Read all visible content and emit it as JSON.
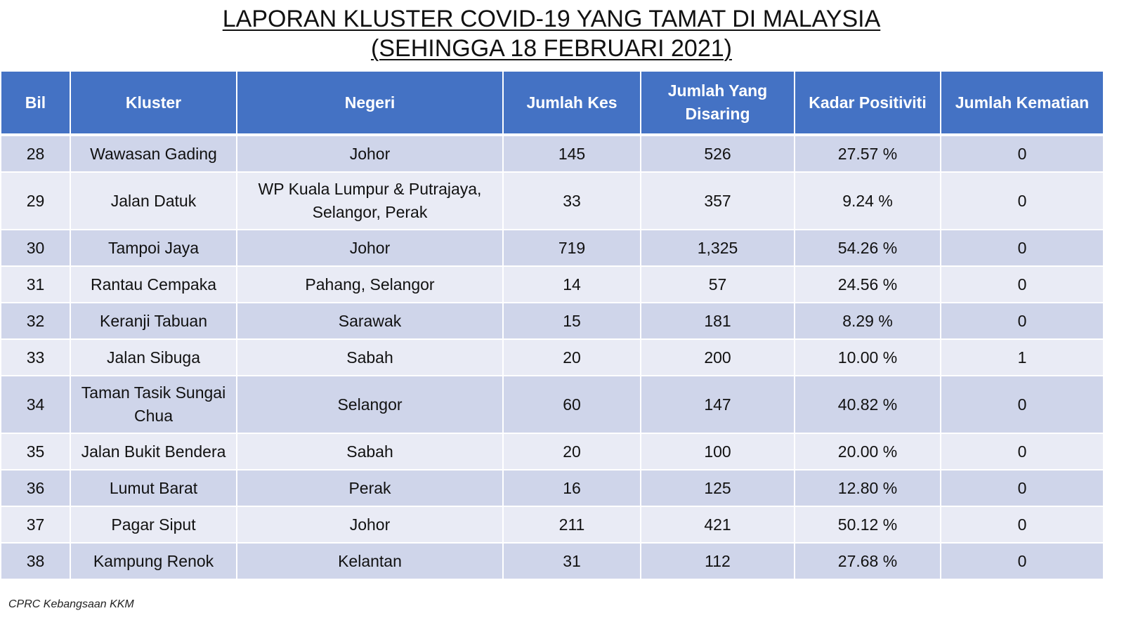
{
  "title": {
    "line1": "LAPORAN KLUSTER COVID-19 YANG TAMAT DI MALAYSIA",
    "line2": "(SEHINGGA  18 FEBRUARI 2021)"
  },
  "table": {
    "headers": [
      "Bil",
      "Kluster",
      "Negeri",
      "Jumlah Kes",
      "Jumlah Yang Disaring",
      "Kadar Positiviti",
      "Jumlah Kematian"
    ],
    "rows": [
      {
        "bil": "28",
        "kluster": "Wawasan Gading",
        "negeri": "Johor",
        "kes": "145",
        "disaring": "526",
        "positiviti": "27.57 %",
        "kematian": "0"
      },
      {
        "bil": "29",
        "kluster": "Jalan Datuk",
        "negeri": "WP Kuala Lumpur & Putrajaya, Selangor, Perak",
        "kes": "33",
        "disaring": "357",
        "positiviti": "9.24 %",
        "kematian": "0"
      },
      {
        "bil": "30",
        "kluster": "Tampoi Jaya",
        "negeri": "Johor",
        "kes": "719",
        "disaring": "1,325",
        "positiviti": "54.26 %",
        "kematian": "0"
      },
      {
        "bil": "31",
        "kluster": "Rantau Cempaka",
        "negeri": "Pahang, Selangor",
        "kes": "14",
        "disaring": "57",
        "positiviti": "24.56 %",
        "kematian": "0"
      },
      {
        "bil": "32",
        "kluster": "Keranji Tabuan",
        "negeri": "Sarawak",
        "kes": "15",
        "disaring": "181",
        "positiviti": "8.29 %",
        "kematian": "0"
      },
      {
        "bil": "33",
        "kluster": "Jalan Sibuga",
        "negeri": "Sabah",
        "kes": "20",
        "disaring": "200",
        "positiviti": "10.00 %",
        "kematian": "1"
      },
      {
        "bil": "34",
        "kluster": "Taman Tasik Sungai Chua",
        "negeri": "Selangor",
        "kes": "60",
        "disaring": "147",
        "positiviti": "40.82 %",
        "kematian": "0"
      },
      {
        "bil": "35",
        "kluster": "Jalan Bukit Bendera",
        "negeri": "Sabah",
        "kes": "20",
        "disaring": "100",
        "positiviti": "20.00 %",
        "kematian": "0"
      },
      {
        "bil": "36",
        "kluster": "Lumut Barat",
        "negeri": "Perak",
        "kes": "16",
        "disaring": "125",
        "positiviti": "12.80 %",
        "kematian": "0"
      },
      {
        "bil": "37",
        "kluster": "Pagar Siput",
        "negeri": "Johor",
        "kes": "211",
        "disaring": "421",
        "positiviti": "50.12 %",
        "kematian": "0"
      },
      {
        "bil": "38",
        "kluster": "Kampung Renok",
        "negeri": "Kelantan",
        "kes": "31",
        "disaring": "112",
        "positiviti": "27.68 %",
        "kematian": "0"
      }
    ]
  },
  "footer": {
    "source": "CPRC Kebangsaan KKM"
  },
  "colors": {
    "header_bg": "#4472c4",
    "row_dark": "#cfd5ea",
    "row_light": "#e9ebf5"
  }
}
